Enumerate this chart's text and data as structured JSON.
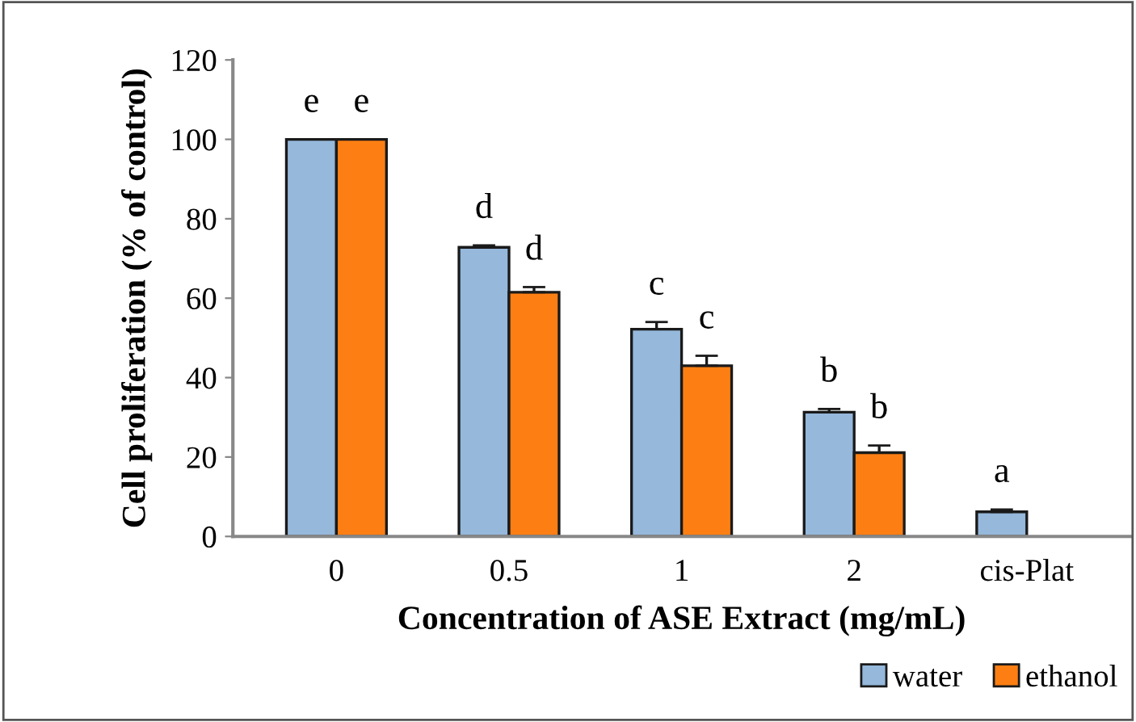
{
  "chart_data": {
    "type": "bar",
    "xlabel": "Concentration of ASE Extract (mg/mL)",
    "ylabel": "Cell proliferation (% of control)",
    "categories": [
      "0",
      "0.5",
      "1",
      "2",
      "cis-Plat"
    ],
    "series": [
      {
        "name": "water",
        "color": "#95b8db",
        "values": [
          100,
          72.8,
          52.2,
          31.3,
          6.2
        ],
        "errors": [
          null,
          0.5,
          1.8,
          0.8,
          0.6
        ],
        "value_labels": [
          "e",
          "d",
          "c",
          "b",
          "a"
        ]
      },
      {
        "name": "ethanol",
        "color": "#fd7f13",
        "values": [
          100,
          61.5,
          43,
          21.1,
          null
        ],
        "errors": [
          null,
          1.3,
          2.5,
          1.8,
          null
        ],
        "value_labels": [
          "e",
          "d",
          "c",
          "b",
          null
        ]
      }
    ],
    "ylim": [
      0,
      120
    ],
    "yticks": [
      0,
      20,
      40,
      60,
      80,
      100,
      120
    ],
    "grid": false,
    "legend": "bottom right"
  }
}
